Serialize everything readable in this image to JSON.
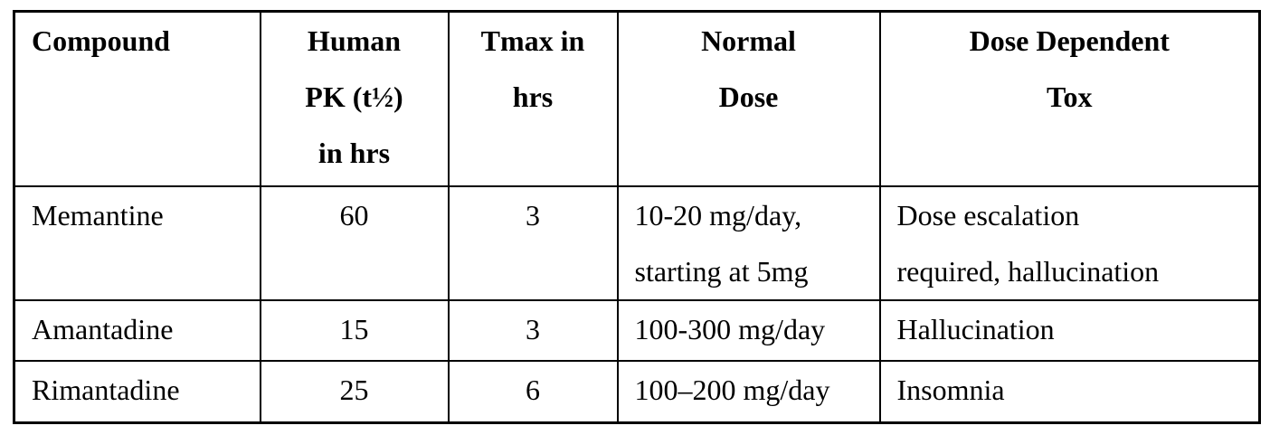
{
  "table": {
    "header": [
      [
        "Compound"
      ],
      [
        "Human",
        "PK (t½)",
        "in hrs"
      ],
      [
        "Tmax in",
        "hrs"
      ],
      [
        "Normal",
        "Dose"
      ],
      [
        "Dose Dependent",
        "Tox"
      ]
    ],
    "rows": [
      [
        [
          "Memantine"
        ],
        [
          "60"
        ],
        [
          "3"
        ],
        [
          "10-20 mg/day,",
          "starting at 5mg"
        ],
        [
          "Dose escalation",
          "required, hallucination"
        ]
      ],
      [
        [
          "Amantadine"
        ],
        [
          "15"
        ],
        [
          "3"
        ],
        [
          "100-300 mg/day"
        ],
        [
          "Hallucination"
        ]
      ],
      [
        [
          "Rimantadine"
        ],
        [
          "25"
        ],
        [
          "6"
        ],
        [
          "100–200 mg/day"
        ],
        [
          "Insomnia"
        ]
      ]
    ]
  }
}
